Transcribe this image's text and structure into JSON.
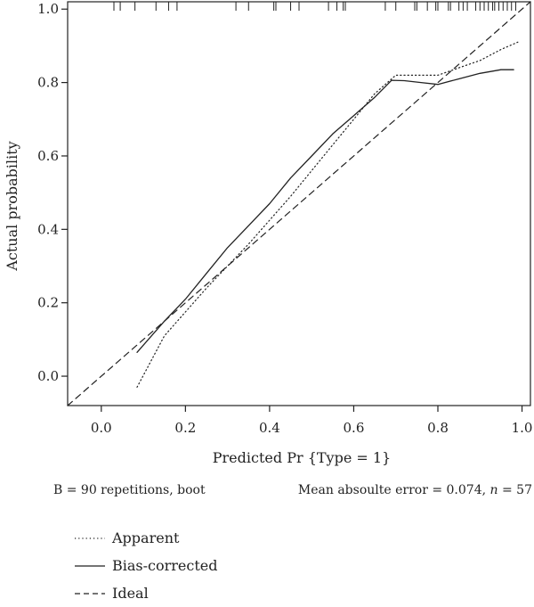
{
  "chart_data": {
    "type": "line",
    "title": "",
    "xlabel": "Predicted Pr {Type = 1}",
    "ylabel": "Actual probability",
    "xlim": [
      -0.08,
      1.02
    ],
    "ylim": [
      -0.08,
      1.02
    ],
    "x_ticks": [
      0.0,
      0.2,
      0.4,
      0.6,
      0.8,
      1.0
    ],
    "x_tick_labels": [
      "0.0",
      "0.2",
      "0.4",
      "0.6",
      "0.8",
      "1.0"
    ],
    "y_ticks": [
      0.0,
      0.2,
      0.4,
      0.6,
      0.8,
      1.0
    ],
    "y_tick_labels": [
      "0.0",
      "0.2",
      "0.4",
      "0.6",
      "0.8",
      "1.0"
    ],
    "grid": false,
    "legend_position": "bottom-left",
    "series": [
      {
        "name": "Apparent",
        "style": "dotted",
        "x": [
          0.085,
          0.15,
          0.25,
          0.35,
          0.45,
          0.5,
          0.55,
          0.6,
          0.65,
          0.7,
          0.75,
          0.8,
          0.85,
          0.9,
          0.95,
          0.99
        ],
        "y": [
          -0.03,
          0.11,
          0.24,
          0.36,
          0.49,
          0.56,
          0.63,
          0.7,
          0.77,
          0.82,
          0.82,
          0.82,
          0.84,
          0.86,
          0.89,
          0.91
        ]
      },
      {
        "name": "Bias-corrected",
        "style": "solid",
        "x": [
          0.085,
          0.15,
          0.2,
          0.25,
          0.3,
          0.35,
          0.4,
          0.45,
          0.5,
          0.55,
          0.6,
          0.65,
          0.69,
          0.72,
          0.76,
          0.8,
          0.85,
          0.9,
          0.95,
          0.98
        ],
        "y": [
          0.065,
          0.15,
          0.21,
          0.28,
          0.35,
          0.41,
          0.47,
          0.54,
          0.6,
          0.66,
          0.71,
          0.76,
          0.806,
          0.805,
          0.8,
          0.795,
          0.81,
          0.825,
          0.835,
          0.835
        ]
      },
      {
        "name": "Ideal",
        "style": "dashed",
        "x": [
          -0.08,
          1.02
        ],
        "y": [
          -0.08,
          1.02
        ]
      }
    ],
    "rug": [
      0.03,
      0.045,
      0.08,
      0.13,
      0.16,
      0.18,
      0.32,
      0.35,
      0.41,
      0.415,
      0.45,
      0.47,
      0.54,
      0.56,
      0.575,
      0.58,
      0.675,
      0.7,
      0.745,
      0.75,
      0.775,
      0.795,
      0.8,
      0.825,
      0.83,
      0.85,
      0.86,
      0.87,
      0.89,
      0.9,
      0.91,
      0.92,
      0.93,
      0.935,
      0.945,
      0.955,
      0.965,
      0.975,
      0.985
    ]
  },
  "annotations": {
    "left": "B = 90 repetitions, boot",
    "right_prefix": "Mean absoulte error = 0.074, ",
    "right_n_symbol": "n",
    "right_suffix": " = 57"
  },
  "legend": [
    {
      "label": "Apparent",
      "style": "dotted"
    },
    {
      "label": "Bias-corrected",
      "style": "solid"
    },
    {
      "label": "Ideal",
      "style": "dashed"
    }
  ]
}
